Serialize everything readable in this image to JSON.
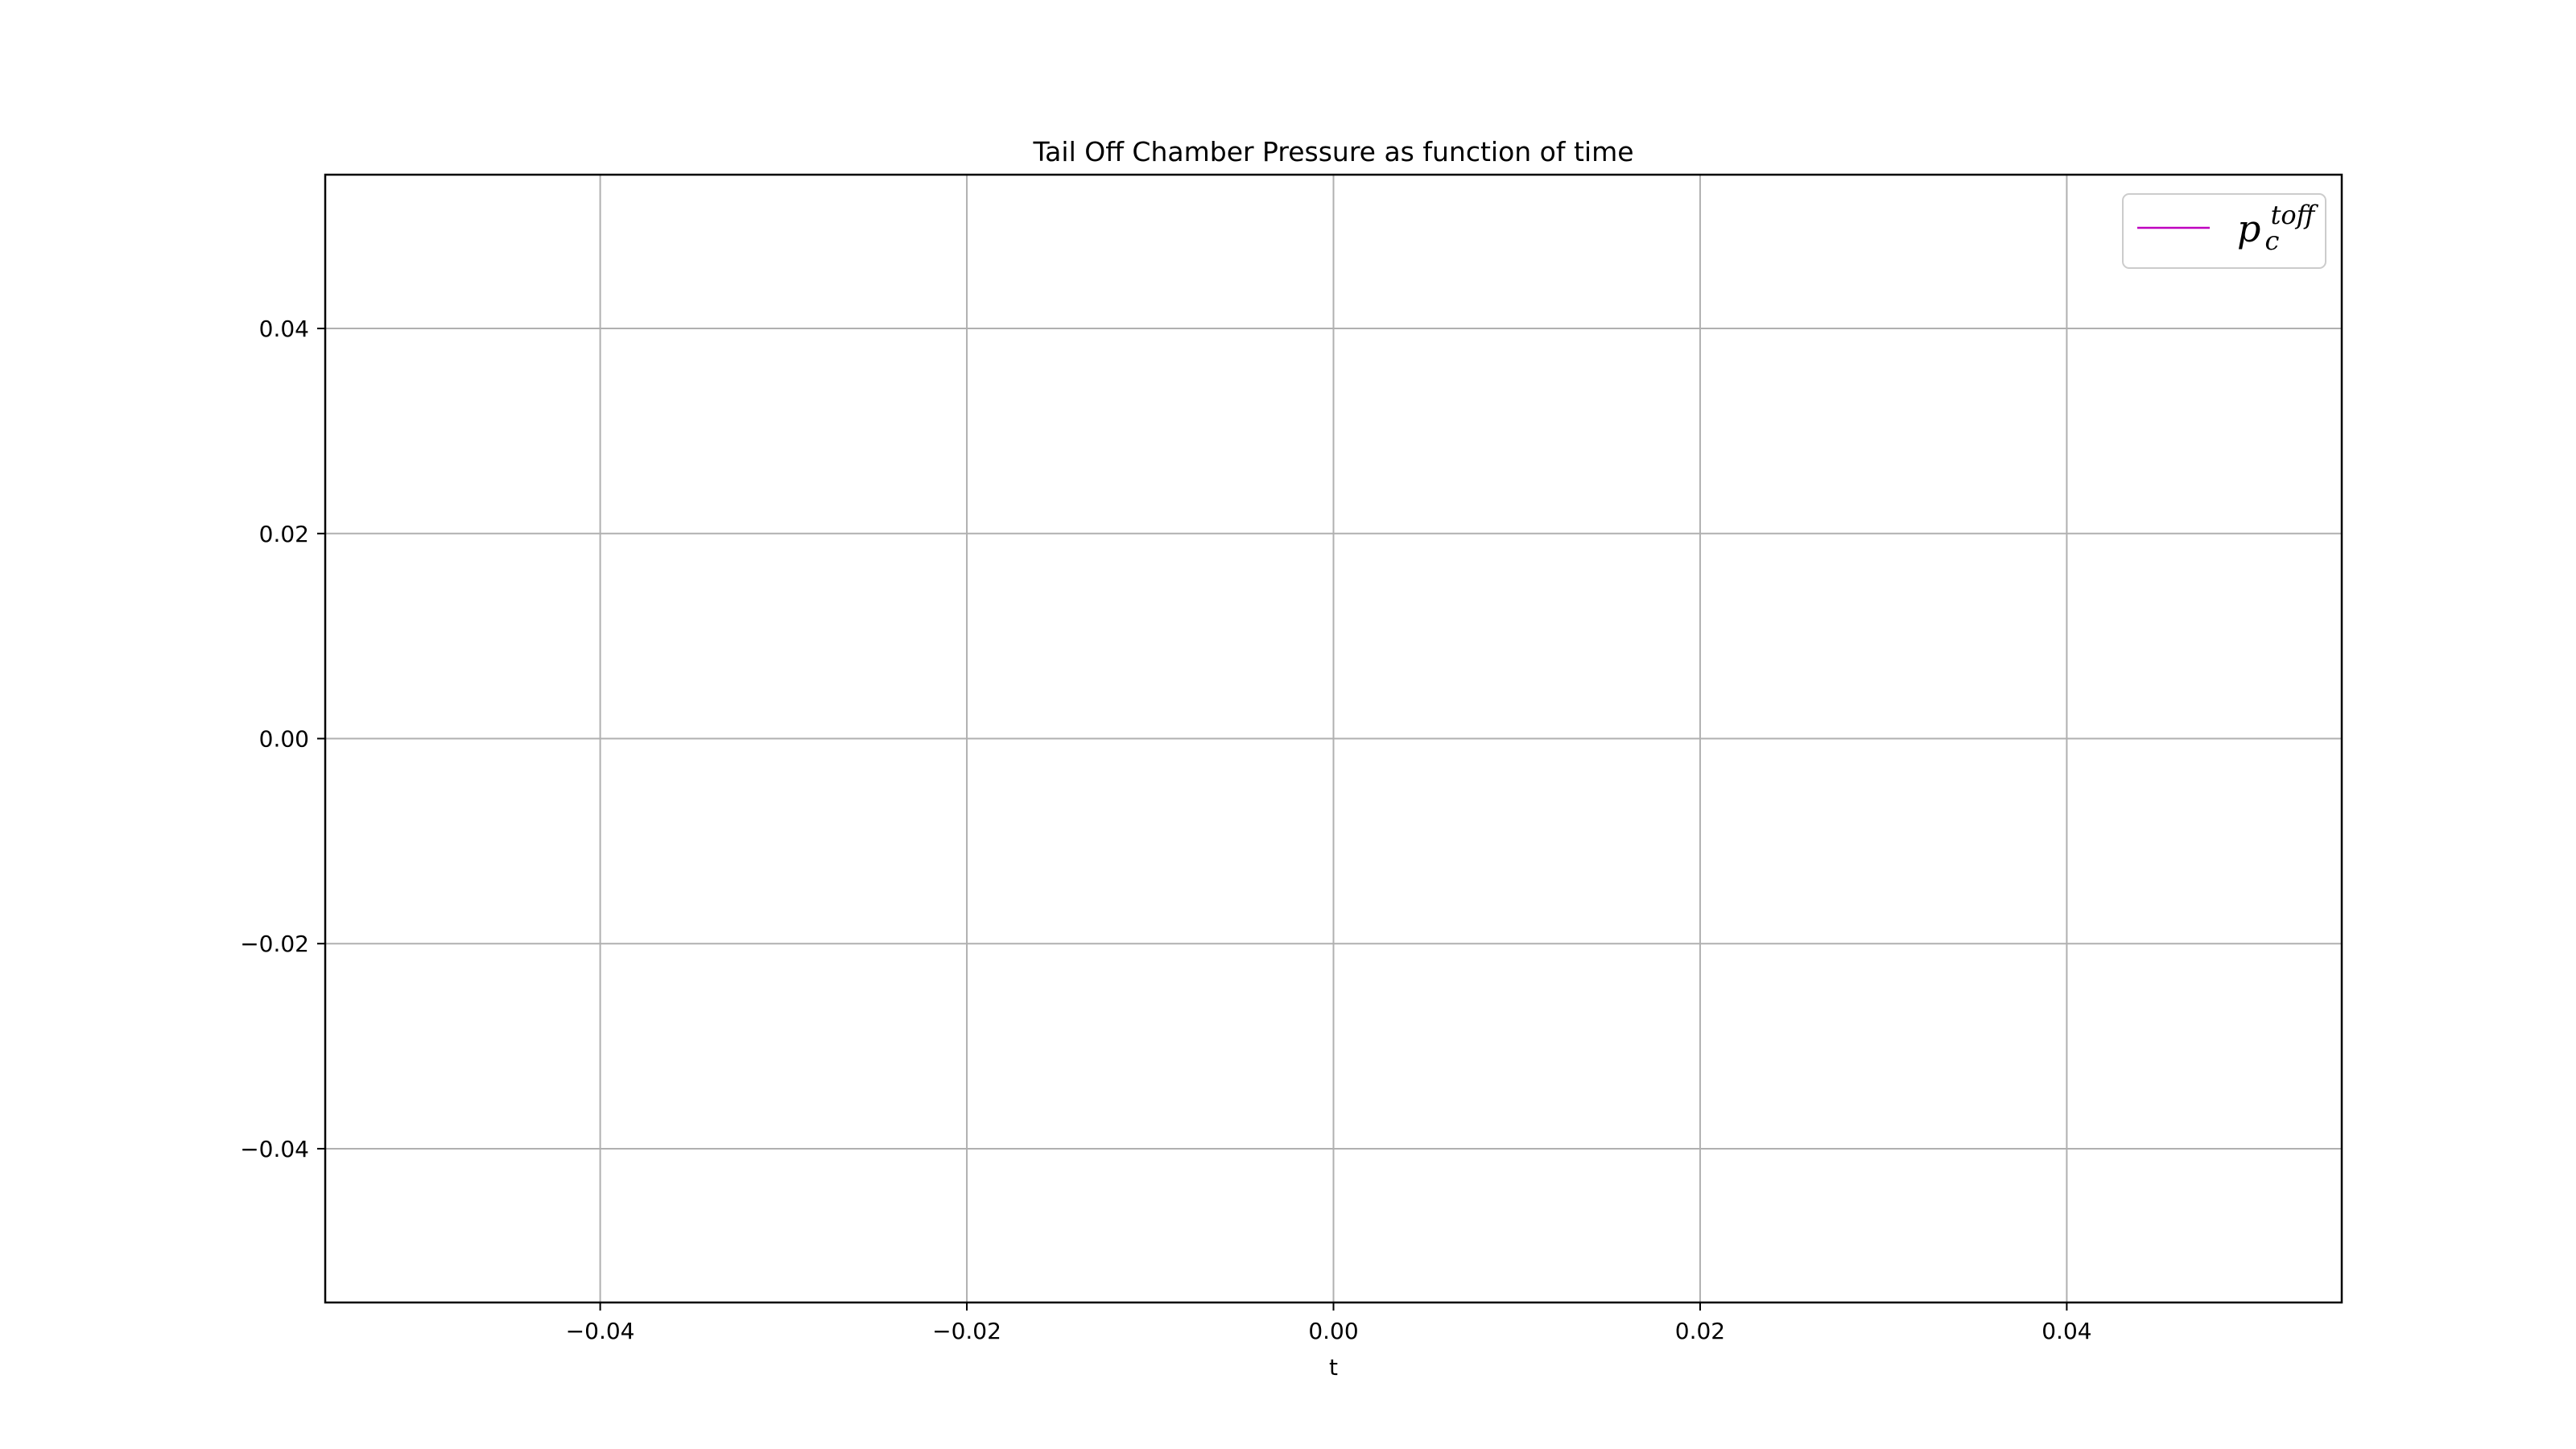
{
  "chart_data": {
    "type": "line",
    "title": "Tail Off Chamber Pressure as function of time",
    "xlabel": "t",
    "ylabel": "",
    "xlim": [
      -0.055,
      0.055
    ],
    "ylim": [
      -0.055,
      0.055
    ],
    "x_ticks": [
      -0.04,
      -0.02,
      0.0,
      0.02,
      0.04
    ],
    "x_tick_labels": [
      "−0.04",
      "−0.02",
      "0.00",
      "0.02",
      "0.04"
    ],
    "y_ticks": [
      0.04,
      0.02,
      0.0,
      -0.02,
      -0.04
    ],
    "y_tick_labels": [
      "0.04",
      "0.02",
      "0.00",
      "−0.02",
      "−0.04"
    ],
    "grid": true,
    "legend_position": "top-right",
    "series": [
      {
        "name": "p_c^toff",
        "name_base": "p",
        "name_sub": "c",
        "name_sup": "toff",
        "color": "#bf00bf",
        "x": [],
        "y": []
      }
    ]
  }
}
